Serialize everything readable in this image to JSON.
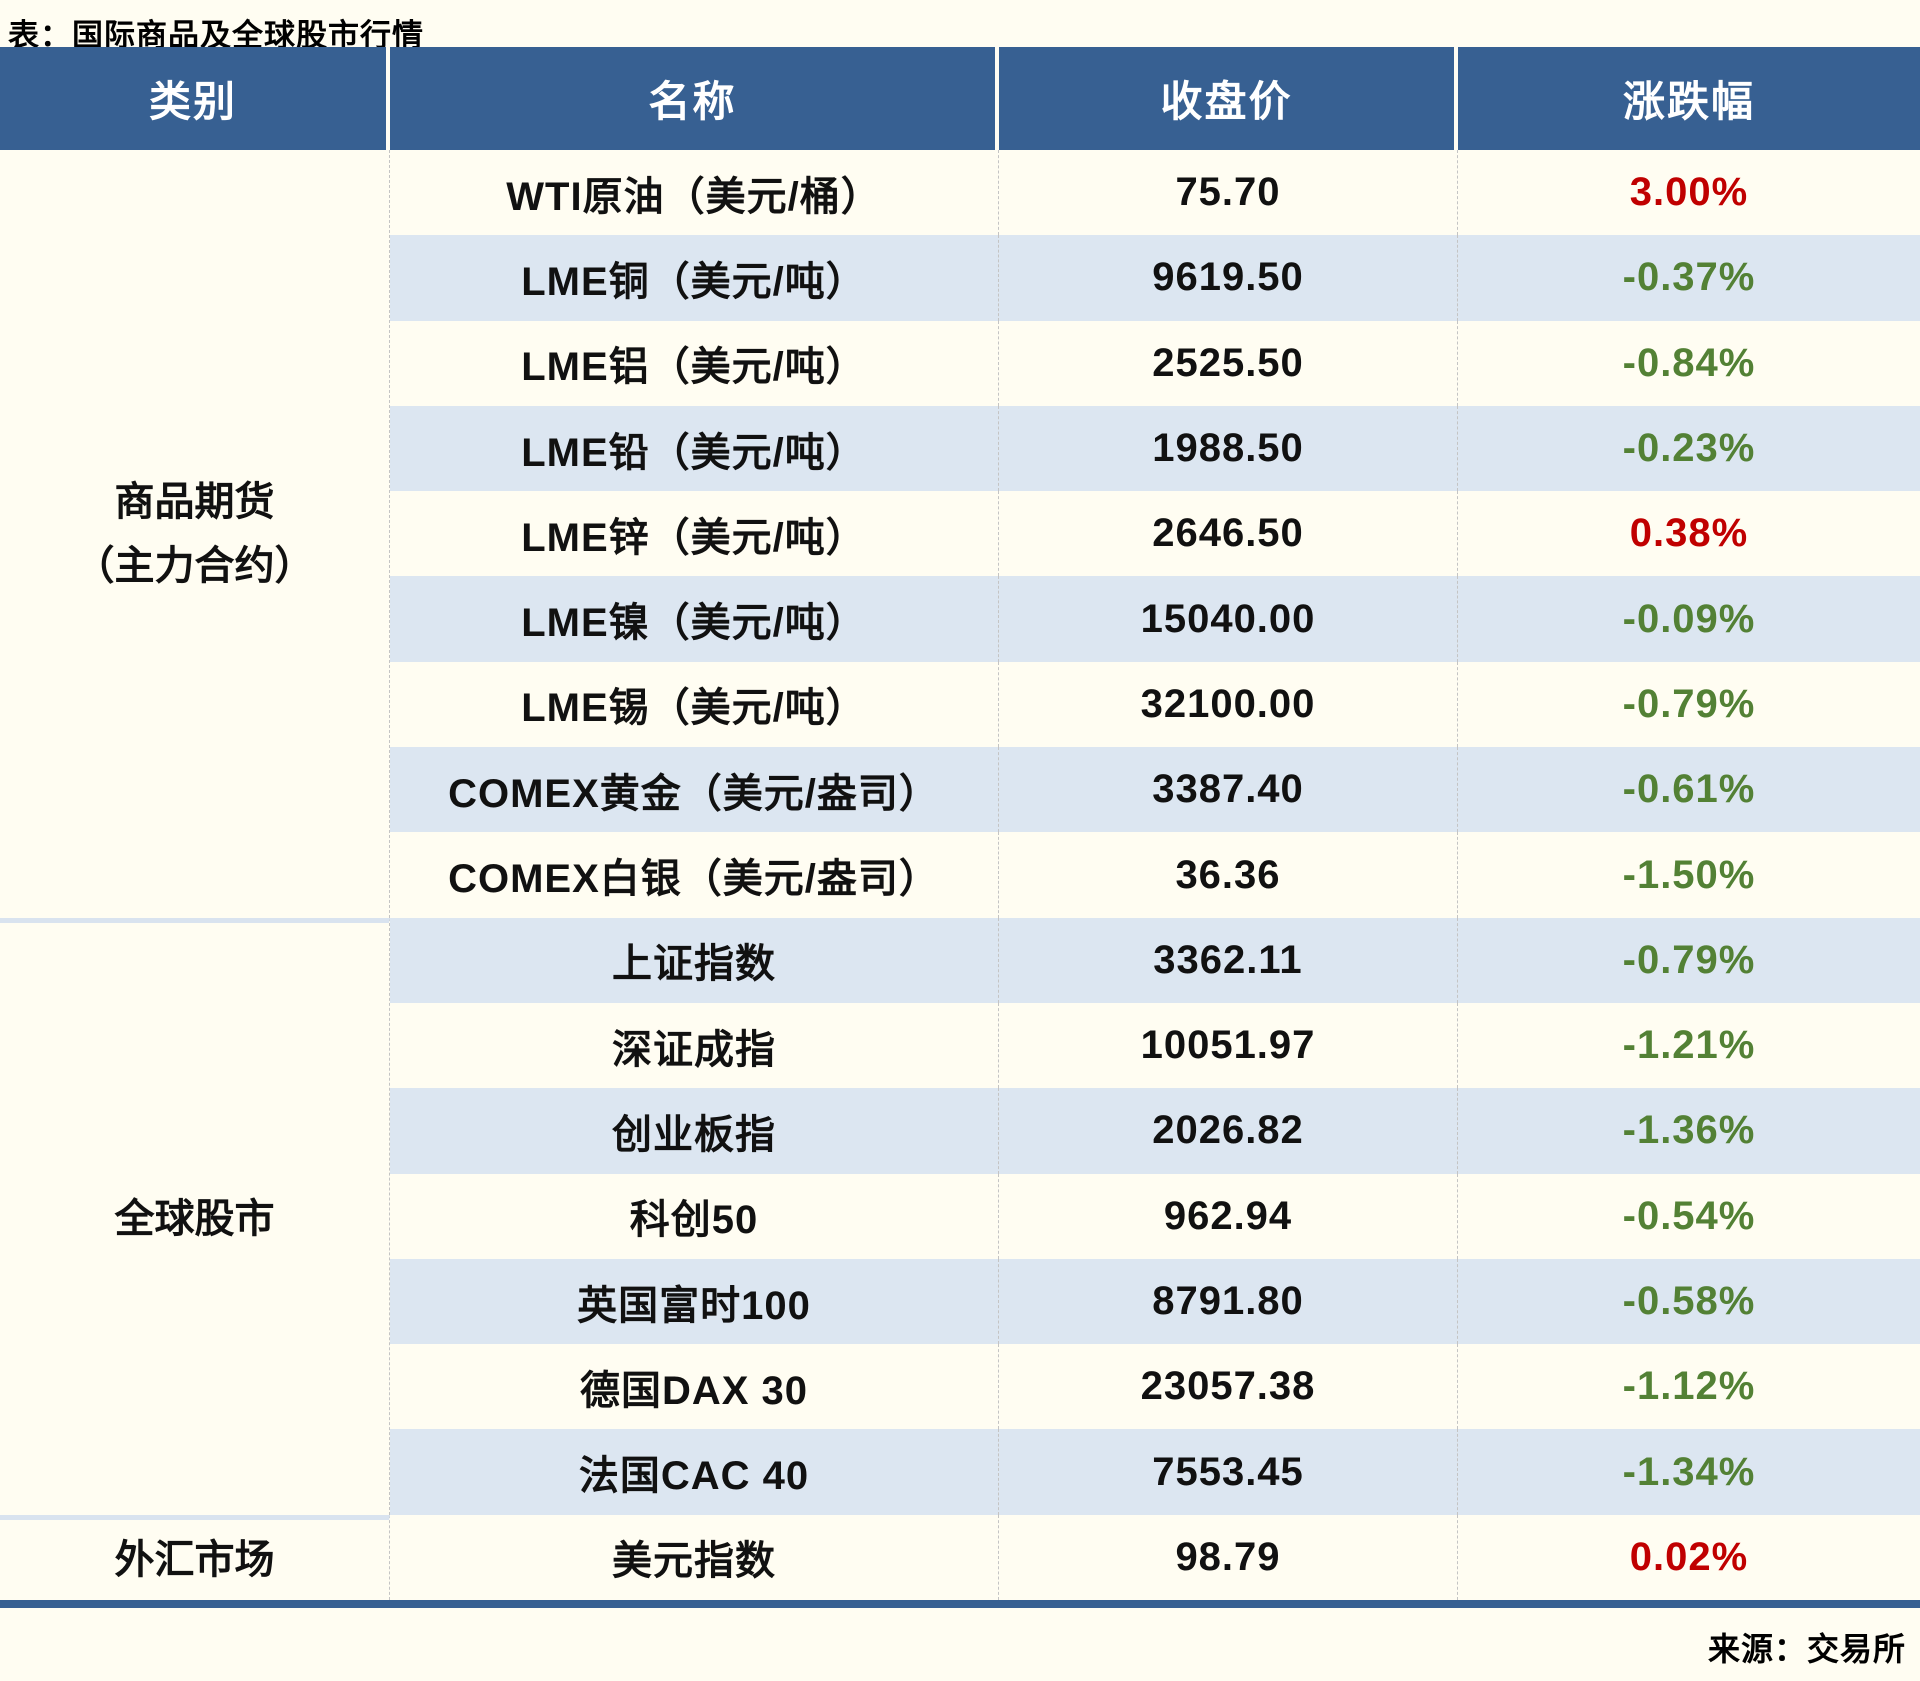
{
  "title": "表：国际商品及全球股市行情",
  "footer": {
    "source": "来源：交易所"
  },
  "colors": {
    "header_bg": "#376092",
    "stripe": "#dce6f1",
    "up_red": "#c00000",
    "down_green": "#538135",
    "page_bg": "#fffdf2"
  },
  "table": {
    "headers": [
      "类别",
      "名称",
      "收盘价",
      "涨跌幅"
    ],
    "groups": [
      {
        "label_line1": "商品期货",
        "label_line2": "（主力合约）"
      },
      {
        "label_line1": "全球股市",
        "label_line2": ""
      },
      {
        "label_line1": "外汇市场",
        "label_line2": ""
      }
    ],
    "rows": [
      {
        "name": "WTI原油（美元/桶）",
        "close": "75.70",
        "change": "3.00%",
        "trend": "up"
      },
      {
        "name": "LME铜（美元/吨）",
        "close": "9619.50",
        "change": "-0.37%",
        "trend": "down"
      },
      {
        "name": "LME铝（美元/吨）",
        "close": "2525.50",
        "change": "-0.84%",
        "trend": "down"
      },
      {
        "name": "LME铅（美元/吨）",
        "close": "1988.50",
        "change": "-0.23%",
        "trend": "down"
      },
      {
        "name": "LME锌（美元/吨）",
        "close": "2646.50",
        "change": "0.38%",
        "trend": "up"
      },
      {
        "name": "LME镍（美元/吨）",
        "close": "15040.00",
        "change": "-0.09%",
        "trend": "down"
      },
      {
        "name": "LME锡（美元/吨）",
        "close": "32100.00",
        "change": "-0.79%",
        "trend": "down"
      },
      {
        "name": "COMEX黄金（美元/盎司）",
        "close": "3387.40",
        "change": "-0.61%",
        "trend": "down"
      },
      {
        "name": "COMEX白银（美元/盎司）",
        "close": "36.36",
        "change": "-1.50%",
        "trend": "down"
      },
      {
        "name": "上证指数",
        "close": "3362.11",
        "change": "-0.79%",
        "trend": "down"
      },
      {
        "name": "深证成指",
        "close": "10051.97",
        "change": "-1.21%",
        "trend": "down"
      },
      {
        "name": "创业板指",
        "close": "2026.82",
        "change": "-1.36%",
        "trend": "down"
      },
      {
        "name": "科创50",
        "close": "962.94",
        "change": "-0.54%",
        "trend": "down"
      },
      {
        "name": "英国富时100",
        "close": "8791.80",
        "change": "-0.58%",
        "trend": "down"
      },
      {
        "name": "德国DAX 30",
        "close": "23057.38",
        "change": "-1.12%",
        "trend": "down"
      },
      {
        "name": "法国CAC 40",
        "close": "7553.45",
        "change": "-1.34%",
        "trend": "down"
      },
      {
        "name": "美元指数",
        "close": "98.79",
        "change": "0.02%",
        "trend": "up"
      }
    ]
  },
  "chart_data": {
    "type": "table",
    "title": "表：国际商品及全球股市行情",
    "columns": [
      "类别",
      "名称",
      "收盘价",
      "涨跌幅"
    ],
    "rows": [
      [
        "商品期货（主力合约）",
        "WTI原油（美元/桶）",
        75.7,
        "3.00%"
      ],
      [
        "商品期货（主力合约）",
        "LME铜（美元/吨）",
        9619.5,
        "-0.37%"
      ],
      [
        "商品期货（主力合约）",
        "LME铝（美元/吨）",
        2525.5,
        "-0.84%"
      ],
      [
        "商品期货（主力合约）",
        "LME铅（美元/吨）",
        1988.5,
        "-0.23%"
      ],
      [
        "商品期货（主力合约）",
        "LME锌（美元/吨）",
        2646.5,
        "0.38%"
      ],
      [
        "商品期货（主力合约）",
        "LME镍（美元/吨）",
        15040.0,
        "-0.09%"
      ],
      [
        "商品期货（主力合约）",
        "LME锡（美元/吨）",
        32100.0,
        "-0.79%"
      ],
      [
        "商品期货（主力合约）",
        "COMEX黄金（美元/盎司）",
        3387.4,
        "-0.61%"
      ],
      [
        "商品期货（主力合约）",
        "COMEX白银（美元/盎司）",
        36.36,
        "-1.50%"
      ],
      [
        "全球股市",
        "上证指数",
        3362.11,
        "-0.79%"
      ],
      [
        "全球股市",
        "深证成指",
        10051.97,
        "-1.21%"
      ],
      [
        "全球股市",
        "创业板指",
        2026.82,
        "-1.36%"
      ],
      [
        "全球股市",
        "科创50",
        962.94,
        "-0.54%"
      ],
      [
        "全球股市",
        "英国富时100",
        8791.8,
        "-0.58%"
      ],
      [
        "全球股市",
        "德国DAX 30",
        23057.38,
        "-1.12%"
      ],
      [
        "全球股市",
        "法国CAC 40",
        7553.45,
        "-1.34%"
      ],
      [
        "外汇市场",
        "美元指数",
        98.79,
        "0.02%"
      ]
    ],
    "legend": "red = 上涨 (up), green = 下跌 (down)",
    "source": "来源：交易所"
  }
}
